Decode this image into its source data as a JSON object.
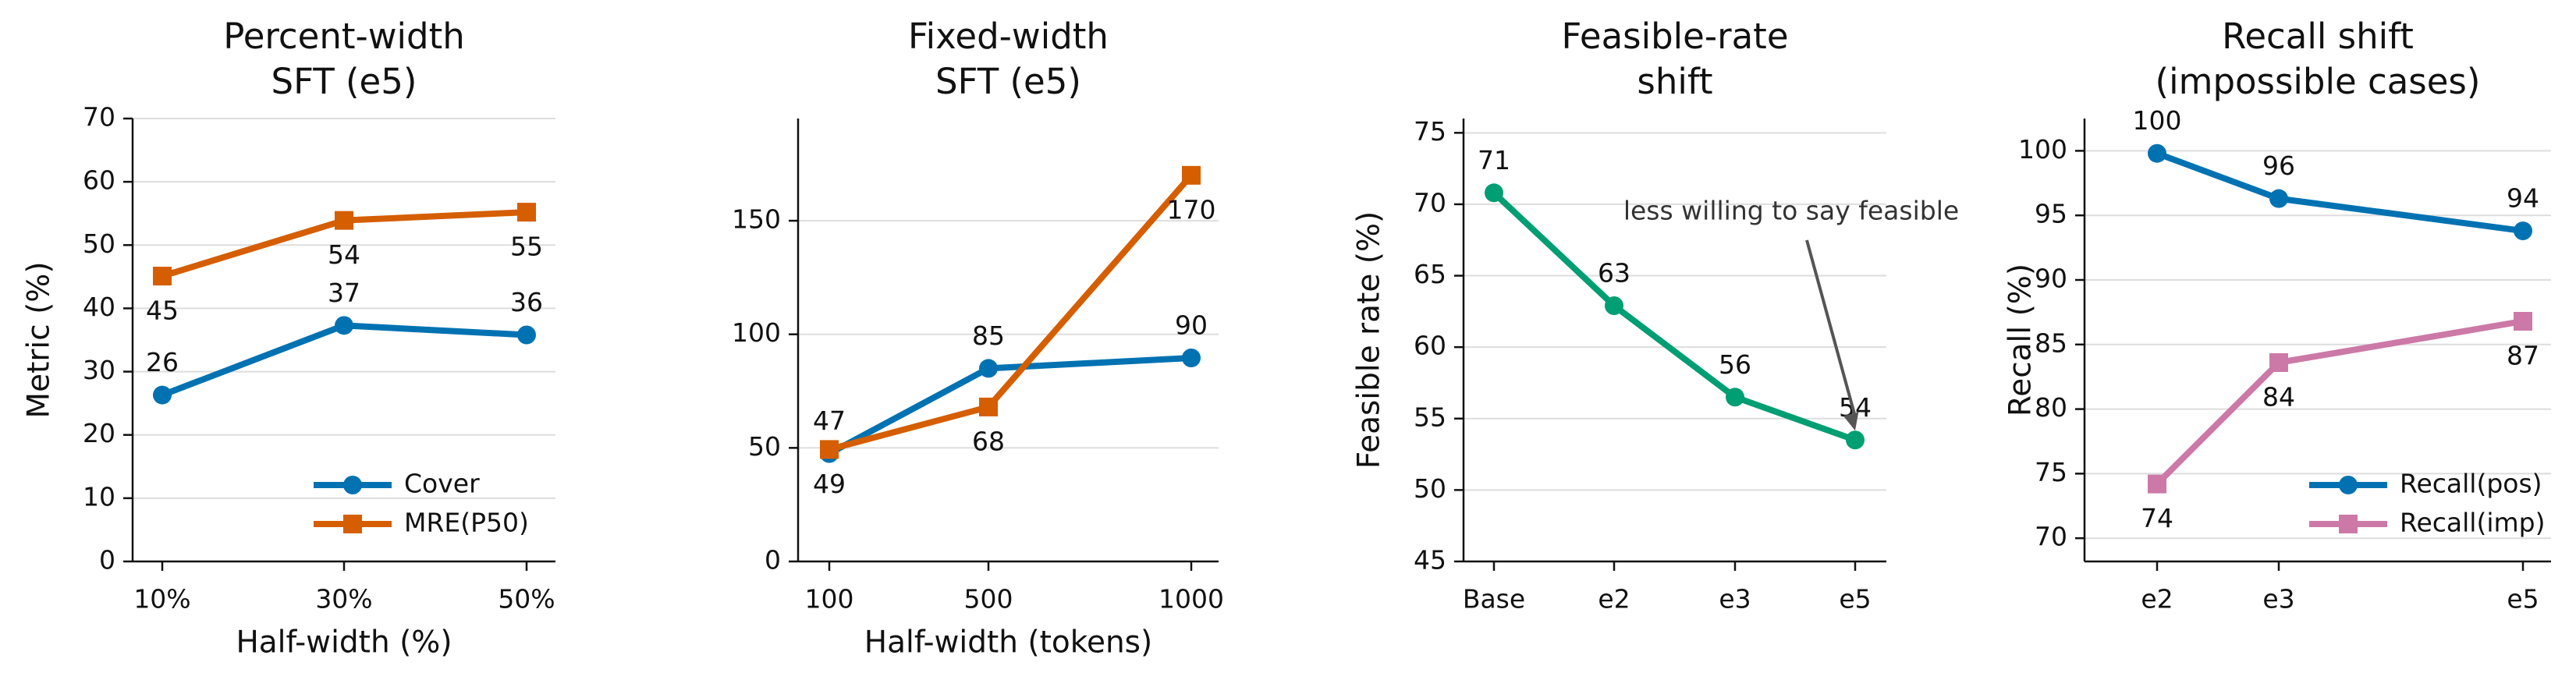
{
  "chart_data": [
    {
      "type": "line",
      "title": [
        "Percent-width",
        "SFT (e5)"
      ],
      "xlabel": "Half-width (%)",
      "ylabel": "Metric (%)",
      "x": [
        "10%",
        "30%",
        "50%"
      ],
      "ylim": [
        0,
        70
      ],
      "yticks": [
        0,
        10,
        20,
        30,
        40,
        50,
        60,
        70
      ],
      "grid": "horizontal",
      "legend_loc": "lower-right",
      "series": [
        {
          "name": "Cover",
          "color": "#0072b2",
          "marker": "circle",
          "values": [
            26.3,
            37.3,
            35.8
          ],
          "labels": [
            "26",
            "37",
            "36"
          ],
          "label_pos": [
            "above",
            "above",
            "above"
          ]
        },
        {
          "name": "MRE(P50)",
          "color": "#d55e00",
          "marker": "square",
          "values": [
            45.1,
            53.9,
            55.2
          ],
          "labels": [
            "45",
            "54",
            "55"
          ],
          "label_pos": [
            "below",
            "below",
            "below"
          ]
        }
      ]
    },
    {
      "type": "line",
      "title": [
        "Fixed-width",
        "SFT (e5)"
      ],
      "xlabel": "Half-width (tokens)",
      "ylabel": "",
      "x": [
        "100",
        "500",
        "1000"
      ],
      "x_values": [
        100,
        500,
        1000
      ],
      "ylim": [
        0,
        195
      ],
      "yticks": [
        0,
        50,
        100,
        150
      ],
      "grid": "horizontal",
      "series": [
        {
          "color": "#0072b2",
          "marker": "circle",
          "values": [
            47.5,
            85,
            89.6
          ],
          "labels": [
            "47",
            "85",
            "90"
          ],
          "label_pos": [
            "above",
            "above",
            "above"
          ]
        },
        {
          "color": "#d55e00",
          "marker": "square",
          "values": [
            49.3,
            68,
            170
          ],
          "labels": [
            "49",
            "68",
            "170"
          ],
          "label_pos": [
            "below",
            "below",
            "below"
          ]
        }
      ]
    },
    {
      "type": "line",
      "title": [
        "Feasible-rate",
        "shift"
      ],
      "xlabel": "",
      "ylabel": "Feasible rate (%)",
      "x": [
        "Base",
        "e2",
        "e3",
        "e5"
      ],
      "ylim": [
        45,
        76
      ],
      "yticks": [
        45,
        50,
        55,
        60,
        65,
        70,
        75
      ],
      "grid": "horizontal",
      "annotation": {
        "text": "less willing to say feasible",
        "target_index": 3
      },
      "series": [
        {
          "color": "#009e73",
          "marker": "circle",
          "values": [
            70.8,
            62.9,
            56.5,
            53.5
          ],
          "labels": [
            "71",
            "63",
            "56",
            "54"
          ],
          "label_pos": [
            "above",
            "above",
            "above",
            "above"
          ]
        }
      ]
    },
    {
      "type": "line",
      "title": [
        "Recall shift",
        "(impossible cases)"
      ],
      "xlabel": "",
      "ylabel": "Recall (%)",
      "x": [
        "e2",
        "e3",
        "e5"
      ],
      "x_values": [
        2,
        3,
        5
      ],
      "ylim": [
        68.2,
        102.5
      ],
      "yticks": [
        70,
        75,
        80,
        85,
        90,
        95,
        100
      ],
      "grid": "horizontal",
      "legend_loc": "lower-right",
      "series": [
        {
          "name": "Recall(pos)",
          "color": "#0072b2",
          "marker": "circle",
          "values": [
            99.8,
            96.3,
            93.8
          ],
          "labels": [
            "100",
            "96",
            "94"
          ],
          "label_pos": [
            "above",
            "above",
            "above"
          ]
        },
        {
          "name": "Recall(imp)",
          "color": "#cc79a7",
          "marker": "square",
          "values": [
            74.2,
            83.6,
            86.8
          ],
          "labels": [
            "74",
            "84",
            "87"
          ],
          "label_pos": [
            "below",
            "below",
            "below"
          ]
        }
      ]
    }
  ]
}
